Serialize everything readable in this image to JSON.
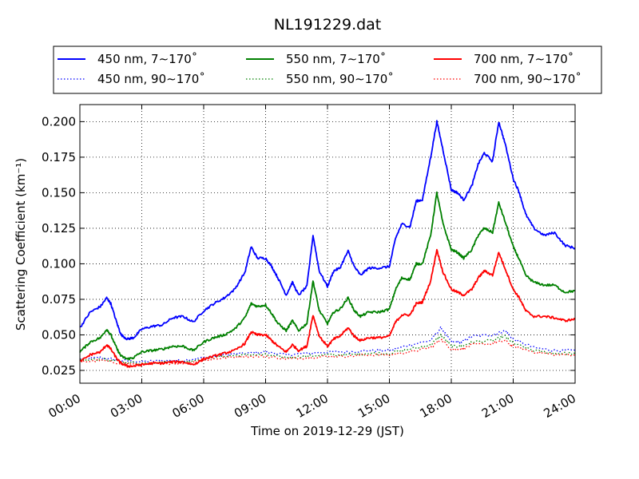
{
  "chart_data": {
    "type": "line",
    "title": "NL191229.dat",
    "xlabel": "Time on 2019-12-29 (JST)",
    "ylabel": "Scattering Coefficient (km⁻¹)",
    "xlim": [
      0,
      24
    ],
    "ylim": [
      0.016,
      0.212
    ],
    "x_ticks": [
      0,
      3,
      6,
      9,
      12,
      15,
      18,
      21,
      24
    ],
    "x_tick_labels": [
      "00:00",
      "03:00",
      "06:00",
      "09:00",
      "12:00",
      "15:00",
      "18:00",
      "21:00",
      "24:00"
    ],
    "y_ticks": [
      0.025,
      0.05,
      0.075,
      0.1,
      0.125,
      0.15,
      0.175,
      0.2
    ],
    "y_tick_labels": [
      "0.025",
      "0.050",
      "0.075",
      "0.100",
      "0.125",
      "0.150",
      "0.175",
      "0.200"
    ],
    "grid": true,
    "legend_position": "above plot, 3 columns",
    "series": [
      {
        "name": "450 nm, 7∼170˚",
        "color": "#0000ff",
        "style": "solid",
        "x": [
          0,
          0.5,
          1,
          1.3,
          1.5,
          1.8,
          2,
          2.3,
          2.6,
          3,
          3.5,
          4,
          4.5,
          5,
          5.5,
          6,
          6.5,
          7,
          7.5,
          8,
          8.3,
          8.6,
          9,
          9.3,
          9.6,
          10,
          10.3,
          10.6,
          11,
          11.3,
          11.6,
          12,
          12.3,
          12.6,
          13,
          13.3,
          13.6,
          14,
          14.5,
          15,
          15.3,
          15.6,
          16,
          16.3,
          16.6,
          17,
          17.3,
          17.6,
          18,
          18.3,
          18.6,
          19,
          19.3,
          19.6,
          20,
          20.3,
          20.6,
          21,
          21.3,
          21.6,
          22,
          22.5,
          23,
          23.5,
          24
        ],
        "values": [
          0.055,
          0.066,
          0.07,
          0.076,
          0.072,
          0.058,
          0.05,
          0.047,
          0.048,
          0.054,
          0.056,
          0.057,
          0.062,
          0.063,
          0.059,
          0.067,
          0.072,
          0.076,
          0.082,
          0.094,
          0.112,
          0.104,
          0.104,
          0.098,
          0.09,
          0.078,
          0.087,
          0.078,
          0.084,
          0.12,
          0.095,
          0.084,
          0.095,
          0.097,
          0.109,
          0.098,
          0.092,
          0.097,
          0.097,
          0.098,
          0.118,
          0.128,
          0.126,
          0.144,
          0.145,
          0.175,
          0.2,
          0.18,
          0.152,
          0.15,
          0.145,
          0.155,
          0.17,
          0.178,
          0.172,
          0.2,
          0.185,
          0.16,
          0.15,
          0.135,
          0.125,
          0.12,
          0.122,
          0.113,
          0.111
        ]
      },
      {
        "name": "550 nm, 7∼170˚",
        "color": "#008000",
        "style": "solid",
        "x": [
          0,
          0.5,
          1,
          1.3,
          1.5,
          1.8,
          2,
          2.3,
          2.6,
          3,
          3.5,
          4,
          4.5,
          5,
          5.5,
          6,
          6.5,
          7,
          7.5,
          8,
          8.3,
          8.6,
          9,
          9.3,
          9.6,
          10,
          10.3,
          10.6,
          11,
          11.3,
          11.6,
          12,
          12.3,
          12.6,
          13,
          13.3,
          13.6,
          14,
          14.5,
          15,
          15.3,
          15.6,
          16,
          16.3,
          16.6,
          17,
          17.3,
          17.6,
          18,
          18.3,
          18.6,
          19,
          19.3,
          19.6,
          20,
          20.3,
          20.6,
          21,
          21.3,
          21.6,
          22,
          22.5,
          23,
          23.5,
          24
        ],
        "values": [
          0.038,
          0.045,
          0.048,
          0.054,
          0.05,
          0.04,
          0.035,
          0.033,
          0.034,
          0.038,
          0.039,
          0.04,
          0.042,
          0.042,
          0.039,
          0.045,
          0.048,
          0.05,
          0.054,
          0.062,
          0.072,
          0.07,
          0.071,
          0.065,
          0.058,
          0.053,
          0.06,
          0.053,
          0.058,
          0.088,
          0.067,
          0.058,
          0.066,
          0.068,
          0.076,
          0.067,
          0.063,
          0.066,
          0.066,
          0.068,
          0.082,
          0.09,
          0.089,
          0.1,
          0.1,
          0.12,
          0.15,
          0.128,
          0.11,
          0.108,
          0.104,
          0.11,
          0.12,
          0.125,
          0.122,
          0.143,
          0.13,
          0.112,
          0.103,
          0.092,
          0.087,
          0.085,
          0.085,
          0.08,
          0.081
        ]
      },
      {
        "name": "700 nm, 7∼170˚",
        "color": "#ff0000",
        "style": "solid",
        "x": [
          0,
          0.5,
          1,
          1.3,
          1.5,
          1.8,
          2,
          2.3,
          2.6,
          3,
          3.5,
          4,
          4.5,
          5,
          5.5,
          6,
          6.5,
          7,
          7.5,
          8,
          8.3,
          8.6,
          9,
          9.3,
          9.6,
          10,
          10.3,
          10.6,
          11,
          11.3,
          11.6,
          12,
          12.3,
          12.6,
          13,
          13.3,
          13.6,
          14,
          14.5,
          15,
          15.3,
          15.6,
          16,
          16.3,
          16.6,
          17,
          17.3,
          17.6,
          18,
          18.3,
          18.6,
          19,
          19.3,
          19.6,
          20,
          20.3,
          20.6,
          21,
          21.3,
          21.6,
          22,
          22.5,
          23,
          23.5,
          24
        ],
        "values": [
          0.031,
          0.036,
          0.038,
          0.043,
          0.04,
          0.033,
          0.03,
          0.028,
          0.028,
          0.029,
          0.03,
          0.03,
          0.031,
          0.031,
          0.029,
          0.033,
          0.035,
          0.037,
          0.039,
          0.044,
          0.052,
          0.05,
          0.05,
          0.046,
          0.042,
          0.038,
          0.043,
          0.039,
          0.042,
          0.064,
          0.049,
          0.042,
          0.047,
          0.049,
          0.055,
          0.049,
          0.046,
          0.048,
          0.048,
          0.049,
          0.059,
          0.064,
          0.064,
          0.072,
          0.073,
          0.088,
          0.11,
          0.094,
          0.082,
          0.08,
          0.078,
          0.082,
          0.09,
          0.095,
          0.092,
          0.108,
          0.097,
          0.082,
          0.076,
          0.067,
          0.063,
          0.063,
          0.062,
          0.06,
          0.061
        ]
      },
      {
        "name": "450 nm, 90∼170˚",
        "color": "#0000ff",
        "style": "dotted",
        "x": [
          0,
          1,
          2,
          3,
          4,
          5,
          6,
          7,
          8,
          9,
          10,
          11,
          12,
          13,
          14,
          15,
          16,
          17,
          17.5,
          18,
          18.5,
          19,
          20,
          20.6,
          21,
          22,
          23,
          24
        ],
        "values": [
          0.033,
          0.034,
          0.032,
          0.031,
          0.032,
          0.032,
          0.034,
          0.036,
          0.037,
          0.038,
          0.036,
          0.037,
          0.038,
          0.038,
          0.039,
          0.039,
          0.043,
          0.046,
          0.055,
          0.045,
          0.045,
          0.049,
          0.05,
          0.053,
          0.047,
          0.041,
          0.039,
          0.039
        ]
      },
      {
        "name": "550 nm, 90∼170˚",
        "color": "#008000",
        "style": "dotted",
        "x": [
          0,
          1,
          2,
          3,
          4,
          5,
          6,
          7,
          8,
          9,
          10,
          11,
          12,
          13,
          14,
          15,
          16,
          17,
          17.5,
          18,
          18.5,
          19,
          20,
          20.6,
          21,
          22,
          23,
          24
        ],
        "values": [
          0.032,
          0.033,
          0.031,
          0.03,
          0.031,
          0.031,
          0.033,
          0.035,
          0.036,
          0.036,
          0.034,
          0.035,
          0.036,
          0.036,
          0.037,
          0.037,
          0.04,
          0.043,
          0.05,
          0.042,
          0.042,
          0.045,
          0.046,
          0.049,
          0.044,
          0.039,
          0.037,
          0.037
        ]
      },
      {
        "name": "700 nm, 90∼170˚",
        "color": "#ff0000",
        "style": "dotted",
        "x": [
          0,
          1,
          2,
          3,
          4,
          5,
          6,
          7,
          8,
          9,
          10,
          11,
          12,
          13,
          14,
          15,
          16,
          17,
          17.5,
          18,
          18.5,
          19,
          20,
          20.6,
          21,
          22,
          23,
          24
        ],
        "values": [
          0.031,
          0.032,
          0.03,
          0.029,
          0.03,
          0.03,
          0.032,
          0.034,
          0.035,
          0.035,
          0.033,
          0.034,
          0.035,
          0.035,
          0.036,
          0.036,
          0.038,
          0.041,
          0.047,
          0.04,
          0.04,
          0.043,
          0.044,
          0.046,
          0.042,
          0.038,
          0.036,
          0.036
        ]
      }
    ]
  }
}
